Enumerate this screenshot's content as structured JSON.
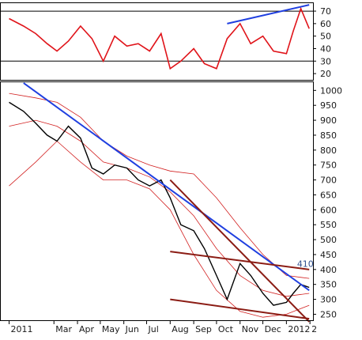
{
  "chart_data": [
    {
      "type": "line",
      "panel": "oscillator",
      "y_ticks": [
        70,
        60,
        50,
        40,
        30,
        20
      ],
      "ylim": [
        15,
        77
      ],
      "reference_lines": [
        70,
        30
      ],
      "colors": {
        "series": "#e0141a",
        "reference": "#000000",
        "trendline": "#1f3fe0"
      },
      "series": [
        {
          "x": [
            "2011-01-01",
            "2011-01-20",
            "2011-02-05",
            "2011-02-20",
            "2011-03-05",
            "2011-03-20",
            "2011-04-05",
            "2011-04-20",
            "2011-05-05",
            "2011-05-20",
            "2011-06-05",
            "2011-06-20",
            "2011-07-05",
            "2011-07-20",
            "2011-08-01",
            "2011-08-15",
            "2011-09-01",
            "2011-09-15",
            "2011-10-01",
            "2011-10-15",
            "2011-11-01",
            "2011-11-15",
            "2011-12-01",
            "2011-12-15",
            "2012-01-01",
            "2012-01-10",
            "2012-01-20",
            "2012-01-31"
          ],
          "values": [
            64,
            58,
            52,
            44,
            38,
            46,
            58,
            48,
            30,
            50,
            42,
            44,
            38,
            52,
            24,
            30,
            40,
            28,
            24,
            48,
            60,
            44,
            50,
            38,
            36,
            54,
            72,
            56
          ]
        }
      ],
      "trendline": {
        "x": [
          "2011-10-15",
          "2012-01-31"
        ],
        "y": [
          60,
          75
        ]
      }
    },
    {
      "type": "line",
      "panel": "price",
      "x_ticks": [
        "2011",
        "Mar",
        "Apr",
        "May",
        "Jun",
        "Jul",
        "Aug",
        "Sep",
        "Oct",
        "Nov",
        "Dec",
        "2012",
        "2"
      ],
      "y_ticks": [
        1000,
        950,
        900,
        850,
        800,
        750,
        700,
        650,
        600,
        550,
        500,
        450,
        400,
        350,
        300,
        250
      ],
      "ylim": [
        230,
        1030
      ],
      "colors": {
        "price": "#000000",
        "bands": "#d22020",
        "trendline": "#1f3fe0",
        "channel": "#8b1c14"
      },
      "annotations": [
        {
          "text": "410",
          "x": "2012-01-15",
          "y": 420
        }
      ],
      "series": [
        {
          "x": [
            "2011-01-01",
            "2011-01-20",
            "2011-02-05",
            "2011-02-20",
            "2011-03-05",
            "2011-03-20",
            "2011-04-05",
            "2011-04-20",
            "2011-05-05",
            "2011-05-20",
            "2011-06-05",
            "2011-06-20",
            "2011-07-05",
            "2011-07-20",
            "2011-08-01",
            "2011-08-15",
            "2011-09-01",
            "2011-09-15",
            "2011-10-01",
            "2011-10-15",
            "2011-11-01",
            "2011-11-15",
            "2011-12-01",
            "2011-12-15",
            "2012-01-01",
            "2012-01-10",
            "2012-01-20",
            "2012-01-31"
          ],
          "values": [
            960,
            930,
            890,
            850,
            830,
            880,
            840,
            740,
            720,
            750,
            740,
            700,
            680,
            700,
            640,
            550,
            530,
            470,
            380,
            300,
            420,
            380,
            320,
            280,
            290,
            320,
            350,
            340
          ]
        },
        {
          "x": [
            "2011-01-01",
            "2011-02-05",
            "2011-03-05",
            "2011-04-05",
            "2011-05-05",
            "2011-06-05",
            "2011-07-05",
            "2011-08-01",
            "2011-09-01",
            "2011-10-01",
            "2011-11-01",
            "2011-12-01",
            "2012-01-01",
            "2012-01-31"
          ],
          "values": [
            990,
            975,
            960,
            910,
            830,
            780,
            750,
            730,
            720,
            640,
            540,
            450,
            380,
            370
          ]
        },
        {
          "x": [
            "2011-01-01",
            "2011-02-05",
            "2011-03-05",
            "2011-04-05",
            "2011-05-05",
            "2011-06-05",
            "2011-07-05",
            "2011-08-01",
            "2011-09-01",
            "2011-10-01",
            "2011-11-01",
            "2011-12-01",
            "2012-01-01",
            "2012-01-31"
          ],
          "values": [
            880,
            900,
            880,
            830,
            760,
            740,
            710,
            660,
            580,
            470,
            380,
            330,
            310,
            320
          ]
        },
        {
          "x": [
            "2011-01-01",
            "2011-02-05",
            "2011-03-05",
            "2011-04-05",
            "2011-05-05",
            "2011-06-05",
            "2011-07-05",
            "2011-08-01",
            "2011-09-01",
            "2011-10-01",
            "2011-11-01",
            "2011-12-01",
            "2012-01-01",
            "2012-01-31"
          ],
          "values": [
            680,
            760,
            830,
            760,
            700,
            700,
            670,
            600,
            450,
            330,
            260,
            240,
            250,
            280
          ]
        }
      ],
      "trendlines": [
        {
          "kind": "resistance",
          "x": [
            "2011-01-20",
            "2012-01-31"
          ],
          "y": [
            1025,
            330
          ]
        },
        {
          "kind": "fast-down",
          "x": [
            "2011-08-01",
            "2012-01-31"
          ],
          "y": [
            700,
            225
          ]
        },
        {
          "kind": "channel-top",
          "x": [
            "2011-08-01",
            "2012-01-31"
          ],
          "y": [
            460,
            400
          ]
        },
        {
          "kind": "channel-bottom",
          "x": [
            "2011-08-01",
            "2012-01-31"
          ],
          "y": [
            300,
            235
          ]
        }
      ]
    }
  ]
}
